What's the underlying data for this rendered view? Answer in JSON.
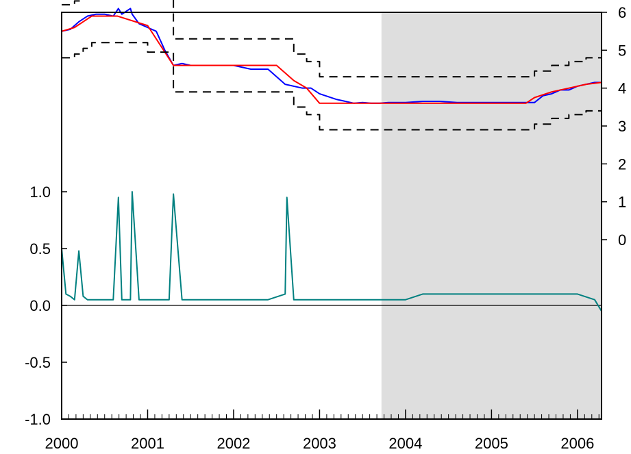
{
  "chart_data": {
    "type": "line",
    "title": "",
    "xlabel": "",
    "x_tick_labels": [
      "2000",
      "2001",
      "2002",
      "2003",
      "2004",
      "2005",
      "2006"
    ],
    "x_range": [
      2000.0,
      2006.28
    ],
    "shaded_region": {
      "x_start": 2003.72,
      "x_end": 2006.28,
      "color": "#dedede"
    },
    "right_axis": {
      "tick_labels": [
        "0",
        "1",
        "2",
        "3",
        "4",
        "5",
        "6"
      ],
      "range": [
        0,
        6
      ]
    },
    "left_axis": {
      "tick_labels": [
        "-1.0",
        "-0.5",
        "0.0",
        "0.5",
        "1.0"
      ],
      "range": [
        -1.0,
        1.0
      ]
    },
    "series": [
      {
        "axis": "right",
        "style": "solid",
        "color": "#0000ff",
        "x": [
          2000.0,
          2000.1,
          2000.2,
          2000.3,
          2000.4,
          2000.5,
          2000.6,
          2000.66,
          2000.7,
          2000.8,
          2000.82,
          2000.9,
          2001.0,
          2001.1,
          2001.2,
          2001.3,
          2001.4,
          2001.5,
          2001.6,
          2001.7,
          2001.8,
          2001.9,
          2002.0,
          2002.2,
          2002.4,
          2002.6,
          2002.8,
          2002.9,
          2003.0,
          2003.2,
          2003.3,
          2003.4,
          2003.5,
          2003.6,
          2003.7,
          2003.8,
          2004.0,
          2004.2,
          2004.4,
          2004.6,
          2004.8,
          2005.0,
          2005.2,
          2005.4,
          2005.5,
          2005.6,
          2005.7,
          2005.8,
          2005.9,
          2006.0,
          2006.1,
          2006.2,
          2006.28
        ],
        "y": [
          5.5,
          5.55,
          5.75,
          5.9,
          5.95,
          5.95,
          5.9,
          6.1,
          5.95,
          6.1,
          5.95,
          5.7,
          5.6,
          5.5,
          5.0,
          4.6,
          4.65,
          4.6,
          4.6,
          4.6,
          4.6,
          4.6,
          4.6,
          4.5,
          4.5,
          4.1,
          4.0,
          4.0,
          3.85,
          3.7,
          3.65,
          3.6,
          3.62,
          3.6,
          3.6,
          3.62,
          3.62,
          3.65,
          3.65,
          3.62,
          3.62,
          3.62,
          3.62,
          3.62,
          3.62,
          3.8,
          3.85,
          3.95,
          3.95,
          4.05,
          4.1,
          4.15,
          4.15
        ]
      },
      {
        "axis": "right",
        "style": "solid",
        "color": "#ff0000",
        "x": [
          2000.0,
          2000.15,
          2000.25,
          2000.35,
          2000.65,
          2001.0,
          2001.3,
          2001.6,
          2001.9,
          2002.2,
          2002.5,
          2002.7,
          2002.85,
          2003.0,
          2003.3,
          2003.6,
          2003.9,
          2004.2,
          2004.5,
          2004.8,
          2005.1,
          2005.4,
          2005.5,
          2005.7,
          2005.9,
          2006.1,
          2006.28
        ],
        "y": [
          5.5,
          5.6,
          5.75,
          5.9,
          5.9,
          5.65,
          4.6,
          4.6,
          4.6,
          4.6,
          4.6,
          4.2,
          4.0,
          3.6,
          3.6,
          3.6,
          3.6,
          3.6,
          3.6,
          3.6,
          3.6,
          3.6,
          3.75,
          3.9,
          4.0,
          4.1,
          4.15
        ]
      },
      {
        "axis": "right",
        "style": "dashed",
        "color": "#000000",
        "x": [
          2000.0,
          2000.15,
          2000.25,
          2000.35,
          2000.65,
          2001.0,
          2001.3,
          2001.6,
          2001.9,
          2002.2,
          2002.5,
          2002.7,
          2002.85,
          2003.0,
          2003.3,
          2003.6,
          2003.9,
          2004.2,
          2004.5,
          2004.8,
          2005.1,
          2005.4,
          2005.5,
          2005.7,
          2005.9,
          2006.1,
          2006.28
        ],
        "y": [
          6.2,
          6.3,
          6.45,
          6.6,
          6.6,
          6.35,
          5.3,
          5.3,
          5.3,
          5.3,
          5.3,
          4.9,
          4.7,
          4.3,
          4.3,
          4.3,
          4.3,
          4.3,
          4.3,
          4.3,
          4.3,
          4.3,
          4.45,
          4.6,
          4.7,
          4.8,
          4.85
        ]
      },
      {
        "axis": "right",
        "style": "dashed",
        "color": "#000000",
        "x": [
          2000.0,
          2000.15,
          2000.25,
          2000.35,
          2000.65,
          2001.0,
          2001.3,
          2001.6,
          2001.9,
          2002.2,
          2002.5,
          2002.7,
          2002.85,
          2003.0,
          2003.3,
          2003.6,
          2003.9,
          2004.2,
          2004.5,
          2004.8,
          2005.1,
          2005.4,
          2005.5,
          2005.7,
          2005.9,
          2006.1,
          2006.28
        ],
        "y": [
          4.8,
          4.9,
          5.05,
          5.2,
          5.2,
          4.95,
          3.9,
          3.9,
          3.9,
          3.9,
          3.9,
          3.5,
          3.3,
          2.9,
          2.9,
          2.9,
          2.9,
          2.9,
          2.9,
          2.9,
          2.9,
          2.9,
          3.05,
          3.2,
          3.3,
          3.4,
          3.45
        ]
      },
      {
        "axis": "left",
        "style": "solid",
        "color": "#008080",
        "x": [
          2000.0,
          2000.05,
          2000.1,
          2000.15,
          2000.2,
          2000.25,
          2000.3,
          2000.4,
          2000.5,
          2000.6,
          2000.66,
          2000.7,
          2000.8,
          2000.82,
          2000.9,
          2001.0,
          2001.1,
          2001.2,
          2001.25,
          2001.3,
          2001.4,
          2001.5,
          2001.6,
          2001.7,
          2001.8,
          2001.9,
          2002.0,
          2002.2,
          2002.4,
          2002.6,
          2002.62,
          2002.7,
          2002.8,
          2002.9,
          2003.0,
          2003.2,
          2003.3,
          2003.4,
          2003.5,
          2003.6,
          2003.7,
          2003.8,
          2004.0,
          2004.2,
          2004.4,
          2004.6,
          2004.8,
          2005.0,
          2005.2,
          2005.4,
          2005.6,
          2005.8,
          2006.0,
          2006.2,
          2006.28
        ],
        "y": [
          0.5,
          0.1,
          0.08,
          0.05,
          0.48,
          0.08,
          0.05,
          0.05,
          0.05,
          0.05,
          0.95,
          0.05,
          0.05,
          1.0,
          0.05,
          0.05,
          0.05,
          0.05,
          0.05,
          0.98,
          0.05,
          0.05,
          0.05,
          0.05,
          0.05,
          0.05,
          0.05,
          0.05,
          0.05,
          0.1,
          0.95,
          0.05,
          0.05,
          0.05,
          0.05,
          0.05,
          0.05,
          0.05,
          0.05,
          0.05,
          0.05,
          0.05,
          0.05,
          0.1,
          0.1,
          0.1,
          0.1,
          0.1,
          0.1,
          0.1,
          0.1,
          0.1,
          0.1,
          0.05,
          -0.05
        ]
      }
    ]
  }
}
